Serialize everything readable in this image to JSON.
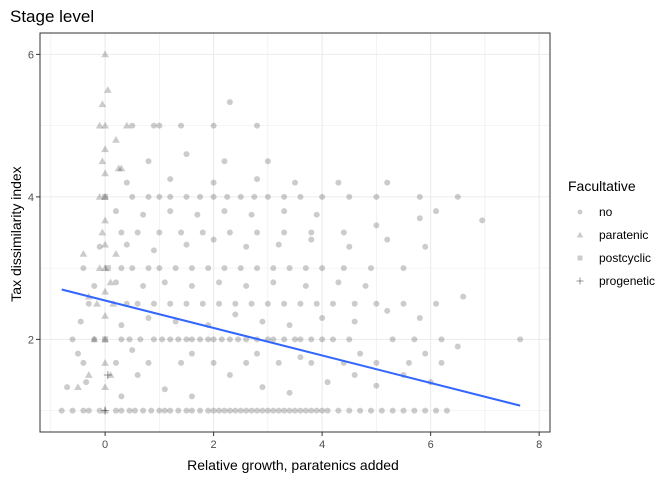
{
  "chart_data": {
    "type": "scatter",
    "title": "Stage level",
    "xlabel": "Relative growth, paratenics added",
    "ylabel": "Tax dissimilarity index",
    "xlim": [
      -1.2,
      8.2
    ],
    "ylim": [
      0.7,
      6.3
    ],
    "x_ticks": [
      0,
      2,
      4,
      6,
      8
    ],
    "y_ticks": [
      2,
      4,
      6
    ],
    "grid": true,
    "legend": {
      "title": "Facultative",
      "position": "right",
      "entries": [
        {
          "label": "no",
          "shape": "circle"
        },
        {
          "label": "paratenic",
          "shape": "triangle"
        },
        {
          "label": "postcyclic",
          "shape": "square"
        },
        {
          "label": "progenetic",
          "shape": "plus"
        }
      ]
    },
    "point_color": "#000000",
    "point_alpha": 0.2,
    "trend_line": {
      "x": [
        -0.8,
        7.65
      ],
      "y": [
        2.7,
        1.07
      ],
      "color": "#3366ff"
    },
    "series": [
      {
        "name": "no",
        "shape": "circle",
        "points": [
          [
            -0.8,
            1
          ],
          [
            -0.6,
            1
          ],
          [
            -0.4,
            1
          ],
          [
            -0.3,
            1
          ],
          [
            -0.1,
            1
          ],
          [
            0.2,
            1
          ],
          [
            0.3,
            1
          ],
          [
            0.45,
            1
          ],
          [
            0.55,
            1
          ],
          [
            0.7,
            1
          ],
          [
            0.85,
            1
          ],
          [
            1.0,
            1
          ],
          [
            1.1,
            1
          ],
          [
            1.2,
            1
          ],
          [
            1.35,
            1
          ],
          [
            1.5,
            1
          ],
          [
            1.6,
            1
          ],
          [
            1.75,
            1
          ],
          [
            1.9,
            1
          ],
          [
            2.0,
            1
          ],
          [
            2.1,
            1
          ],
          [
            2.2,
            1
          ],
          [
            2.3,
            1
          ],
          [
            2.4,
            1
          ],
          [
            2.5,
            1
          ],
          [
            2.6,
            1
          ],
          [
            2.7,
            1
          ],
          [
            2.8,
            1
          ],
          [
            2.9,
            1
          ],
          [
            3.0,
            1
          ],
          [
            3.1,
            1
          ],
          [
            3.2,
            1
          ],
          [
            3.3,
            1
          ],
          [
            3.4,
            1
          ],
          [
            3.5,
            1
          ],
          [
            3.6,
            1
          ],
          [
            3.7,
            1
          ],
          [
            3.8,
            1
          ],
          [
            3.9,
            1
          ],
          [
            4.0,
            1
          ],
          [
            4.1,
            1
          ],
          [
            4.3,
            1
          ],
          [
            4.5,
            1
          ],
          [
            4.7,
            1
          ],
          [
            4.9,
            1
          ],
          [
            5.1,
            1
          ],
          [
            5.3,
            1
          ],
          [
            5.5,
            1
          ],
          [
            5.7,
            1
          ],
          [
            5.9,
            1
          ],
          [
            6.1,
            1
          ],
          [
            6.3,
            1
          ],
          [
            -0.7,
            1.33
          ],
          [
            -0.35,
            1.4
          ],
          [
            0.3,
            1.2
          ],
          [
            0.6,
            1.5
          ],
          [
            1.1,
            1.3
          ],
          [
            1.6,
            1.2
          ],
          [
            2.3,
            1.5
          ],
          [
            2.9,
            1.33
          ],
          [
            3.4,
            1.25
          ],
          [
            4.1,
            1.4
          ],
          [
            4.6,
            1.5
          ],
          [
            5.0,
            1.35
          ],
          [
            5.5,
            1.5
          ],
          [
            6.0,
            1.4
          ],
          [
            -0.4,
            1.67
          ],
          [
            0.2,
            1.67
          ],
          [
            0.8,
            1.67
          ],
          [
            1.4,
            1.67
          ],
          [
            2.0,
            1.67
          ],
          [
            2.6,
            1.67
          ],
          [
            3.2,
            1.67
          ],
          [
            3.8,
            1.67
          ],
          [
            4.4,
            1.67
          ],
          [
            5.0,
            1.67
          ],
          [
            5.6,
            1.67
          ],
          [
            6.2,
            1.67
          ],
          [
            -0.5,
            1.8
          ],
          [
            0.5,
            1.85
          ],
          [
            1.6,
            1.8
          ],
          [
            2.8,
            1.8
          ],
          [
            3.6,
            1.75
          ],
          [
            4.7,
            1.8
          ],
          [
            5.9,
            1.8
          ],
          [
            6.5,
            1.9
          ],
          [
            -0.6,
            2
          ],
          [
            -0.2,
            2
          ],
          [
            0.3,
            2
          ],
          [
            0.45,
            2
          ],
          [
            0.65,
            2
          ],
          [
            0.9,
            2
          ],
          [
            1.05,
            2
          ],
          [
            1.2,
            2
          ],
          [
            1.35,
            2
          ],
          [
            1.5,
            2
          ],
          [
            1.6,
            2
          ],
          [
            1.75,
            2
          ],
          [
            1.9,
            2
          ],
          [
            2.0,
            2
          ],
          [
            2.15,
            2
          ],
          [
            2.3,
            2
          ],
          [
            2.45,
            2
          ],
          [
            2.6,
            2
          ],
          [
            2.8,
            2
          ],
          [
            3.0,
            2
          ],
          [
            3.1,
            2
          ],
          [
            3.3,
            2
          ],
          [
            3.5,
            2
          ],
          [
            3.6,
            2
          ],
          [
            3.8,
            2
          ],
          [
            4.0,
            2
          ],
          [
            4.2,
            2
          ],
          [
            4.5,
            2
          ],
          [
            5.3,
            2
          ],
          [
            5.7,
            2
          ],
          [
            6.2,
            2
          ],
          [
            7.65,
            2
          ],
          [
            -0.45,
            2.25
          ],
          [
            0.3,
            2.2
          ],
          [
            0.8,
            2.3
          ],
          [
            1.3,
            2.25
          ],
          [
            1.9,
            2.2
          ],
          [
            2.4,
            2.35
          ],
          [
            2.9,
            2.25
          ],
          [
            3.4,
            2.2
          ],
          [
            4.0,
            2.3
          ],
          [
            4.6,
            2.25
          ],
          [
            5.2,
            2.4
          ],
          [
            5.8,
            2.3
          ],
          [
            6.6,
            2.6
          ],
          [
            -0.3,
            2.5
          ],
          [
            0.4,
            2.5
          ],
          [
            0.6,
            2.5
          ],
          [
            0.9,
            2.5
          ],
          [
            1.2,
            2.5
          ],
          [
            1.5,
            2.5
          ],
          [
            1.8,
            2.5
          ],
          [
            2.1,
            2.5
          ],
          [
            2.4,
            2.5
          ],
          [
            2.7,
            2.5
          ],
          [
            3.0,
            2.5
          ],
          [
            3.3,
            2.5
          ],
          [
            3.6,
            2.5
          ],
          [
            3.9,
            2.5
          ],
          [
            4.2,
            2.5
          ],
          [
            4.6,
            2.5
          ],
          [
            5.0,
            2.5
          ],
          [
            5.5,
            2.5
          ],
          [
            6.1,
            2.5
          ],
          [
            -0.2,
            2.75
          ],
          [
            0.2,
            2.8
          ],
          [
            0.7,
            2.75
          ],
          [
            1.1,
            2.8
          ],
          [
            1.6,
            2.75
          ],
          [
            2.1,
            2.8
          ],
          [
            2.6,
            2.75
          ],
          [
            3.1,
            2.8
          ],
          [
            3.7,
            2.75
          ],
          [
            4.3,
            2.8
          ],
          [
            4.8,
            2.75
          ],
          [
            -0.4,
            3
          ],
          [
            0.3,
            3
          ],
          [
            0.5,
            3
          ],
          [
            0.8,
            3
          ],
          [
            1.0,
            3
          ],
          [
            1.3,
            3
          ],
          [
            1.6,
            3
          ],
          [
            1.9,
            3
          ],
          [
            2.2,
            3
          ],
          [
            2.5,
            3
          ],
          [
            2.8,
            3
          ],
          [
            3.1,
            3
          ],
          [
            3.4,
            3
          ],
          [
            3.7,
            3
          ],
          [
            4.0,
            3
          ],
          [
            4.4,
            3
          ],
          [
            4.9,
            3
          ],
          [
            5.5,
            3
          ],
          [
            -0.1,
            3.3
          ],
          [
            0.4,
            3.33
          ],
          [
            0.9,
            3.25
          ],
          [
            1.5,
            3.33
          ],
          [
            2.0,
            3.4
          ],
          [
            2.6,
            3.3
          ],
          [
            3.2,
            3.33
          ],
          [
            3.8,
            3.4
          ],
          [
            4.5,
            3.3
          ],
          [
            5.2,
            3.4
          ],
          [
            5.9,
            3.3
          ],
          [
            0.3,
            3.5
          ],
          [
            0.6,
            3.5
          ],
          [
            1.0,
            3.5
          ],
          [
            1.4,
            3.5
          ],
          [
            1.8,
            3.5
          ],
          [
            2.3,
            3.5
          ],
          [
            2.8,
            3.5
          ],
          [
            3.3,
            3.5
          ],
          [
            3.8,
            3.5
          ],
          [
            4.4,
            3.5
          ],
          [
            5.0,
            3.6
          ],
          [
            5.8,
            3.7
          ],
          [
            6.95,
            3.67
          ],
          [
            0.2,
            3.8
          ],
          [
            0.7,
            3.75
          ],
          [
            1.2,
            3.8
          ],
          [
            1.7,
            3.75
          ],
          [
            2.2,
            3.8
          ],
          [
            2.7,
            3.75
          ],
          [
            3.3,
            3.8
          ],
          [
            3.9,
            3.75
          ],
          [
            6.1,
            3.8
          ],
          [
            0.5,
            4
          ],
          [
            0.8,
            4
          ],
          [
            1.0,
            4
          ],
          [
            1.2,
            4
          ],
          [
            1.5,
            4
          ],
          [
            1.75,
            4
          ],
          [
            2.0,
            4
          ],
          [
            2.25,
            4
          ],
          [
            2.5,
            4
          ],
          [
            2.75,
            4
          ],
          [
            3.0,
            4
          ],
          [
            3.3,
            4
          ],
          [
            3.6,
            4
          ],
          [
            4.0,
            4
          ],
          [
            4.5,
            4
          ],
          [
            5.0,
            4
          ],
          [
            5.8,
            4
          ],
          [
            6.5,
            4
          ],
          [
            0.4,
            4.2
          ],
          [
            1.2,
            4.25
          ],
          [
            2.0,
            4.2
          ],
          [
            2.8,
            4.25
          ],
          [
            3.5,
            4.2
          ],
          [
            4.3,
            4.2
          ],
          [
            5.2,
            4.2
          ],
          [
            0.8,
            4.5
          ],
          [
            1.5,
            4.6
          ],
          [
            2.2,
            4.5
          ],
          [
            3.0,
            4.5
          ],
          [
            0.5,
            5
          ],
          [
            0.9,
            5
          ],
          [
            1.0,
            5
          ],
          [
            1.4,
            5
          ],
          [
            2.0,
            5
          ],
          [
            2.8,
            5
          ],
          [
            2.3,
            5.33
          ]
        ]
      },
      {
        "name": "paratenic",
        "shape": "triangle",
        "points": [
          [
            -0.5,
            1.33
          ],
          [
            -0.3,
            1.5
          ],
          [
            -0.2,
            2
          ],
          [
            -0.15,
            2.5
          ],
          [
            -0.1,
            3
          ],
          [
            -0.05,
            3.5
          ],
          [
            -0.1,
            4
          ],
          [
            -0.05,
            4.5
          ],
          [
            -0.1,
            5
          ],
          [
            -0.05,
            5.3
          ],
          [
            0.0,
            6
          ],
          [
            0.05,
            5.5
          ],
          [
            0.0,
            5
          ],
          [
            0.0,
            4.67
          ],
          [
            0.0,
            4.33
          ],
          [
            0.0,
            4
          ],
          [
            0.0,
            3.67
          ],
          [
            0.0,
            3.33
          ],
          [
            0.0,
            3
          ],
          [
            0.0,
            2.67
          ],
          [
            0.0,
            2.33
          ],
          [
            0.0,
            2
          ],
          [
            0.0,
            1.67
          ],
          [
            0.0,
            1.33
          ],
          [
            0.0,
            1
          ],
          [
            0.1,
            1.5
          ],
          [
            0.15,
            2.5
          ],
          [
            0.2,
            3.2
          ],
          [
            0.25,
            4.4
          ],
          [
            0.3,
            4.4
          ],
          [
            0.1,
            2.8
          ],
          [
            -0.3,
            2.6
          ],
          [
            -0.4,
            3.2
          ],
          [
            0.4,
            5.0
          ],
          [
            0.2,
            4.8
          ]
        ]
      },
      {
        "name": "postcyclic",
        "shape": "square",
        "points": [
          [
            0.0,
            2
          ],
          [
            0.05,
            3
          ],
          [
            0.0,
            4
          ]
        ]
      },
      {
        "name": "progenetic",
        "shape": "plus",
        "points": [
          [
            0.0,
            1
          ],
          [
            0.05,
            1.5
          ]
        ]
      }
    ]
  }
}
